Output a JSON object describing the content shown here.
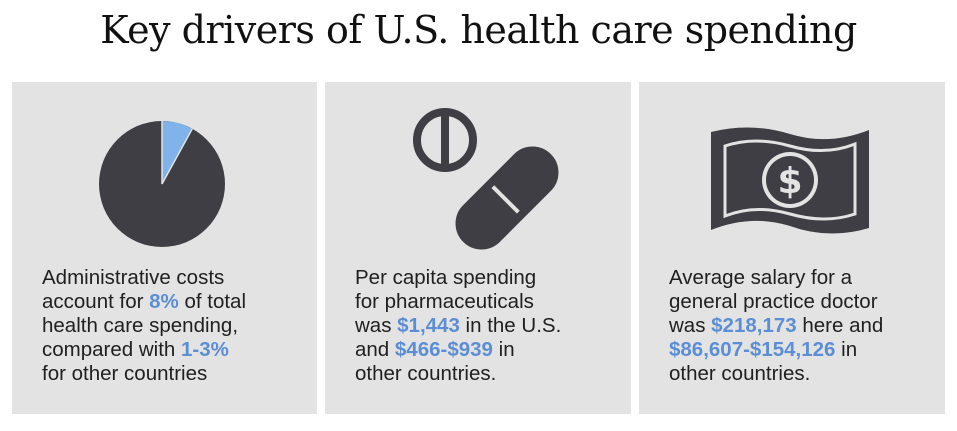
{
  "title": "Key drivers of U.S. health care spending",
  "colors": {
    "accent": "#5b8ed4",
    "dark": "#3e3e44",
    "panel": "#e3e3e3"
  },
  "panels": [
    {
      "icon": "pie-chart-icon",
      "lines": [
        [
          {
            "t": "Administrative costs"
          }
        ],
        [
          {
            "t": "account for "
          },
          {
            "t": "8%",
            "hl": true
          },
          {
            "t": " of total"
          }
        ],
        [
          {
            "t": "health care spending,"
          }
        ],
        [
          {
            "t": "compared with "
          },
          {
            "t": "1-3%",
            "hl": true
          }
        ],
        [
          {
            "t": "for other countries"
          }
        ]
      ]
    },
    {
      "icon": "pills-icon",
      "lines": [
        [
          {
            "t": "Per capita spending"
          }
        ],
        [
          {
            "t": "for pharmaceuticals"
          }
        ],
        [
          {
            "t": "was "
          },
          {
            "t": "$1,443",
            "hl": true
          },
          {
            "t": " in the U.S."
          }
        ],
        [
          {
            "t": "and "
          },
          {
            "t": "$466-$939",
            "hl": true
          },
          {
            "t": " in"
          }
        ],
        [
          {
            "t": "other countries."
          }
        ]
      ]
    },
    {
      "icon": "dollar-bill-icon",
      "lines": [
        [
          {
            "t": "Average salary for a"
          }
        ],
        [
          {
            "t": "general practice doctor"
          }
        ],
        [
          {
            "t": "was "
          },
          {
            "t": "$218,173",
            "hl": true
          },
          {
            "t": " here and"
          }
        ],
        [
          {
            "t": "$86,607-$154,126",
            "hl": true
          },
          {
            "t": " in"
          }
        ],
        [
          {
            "t": "other countries."
          }
        ]
      ]
    }
  ]
}
